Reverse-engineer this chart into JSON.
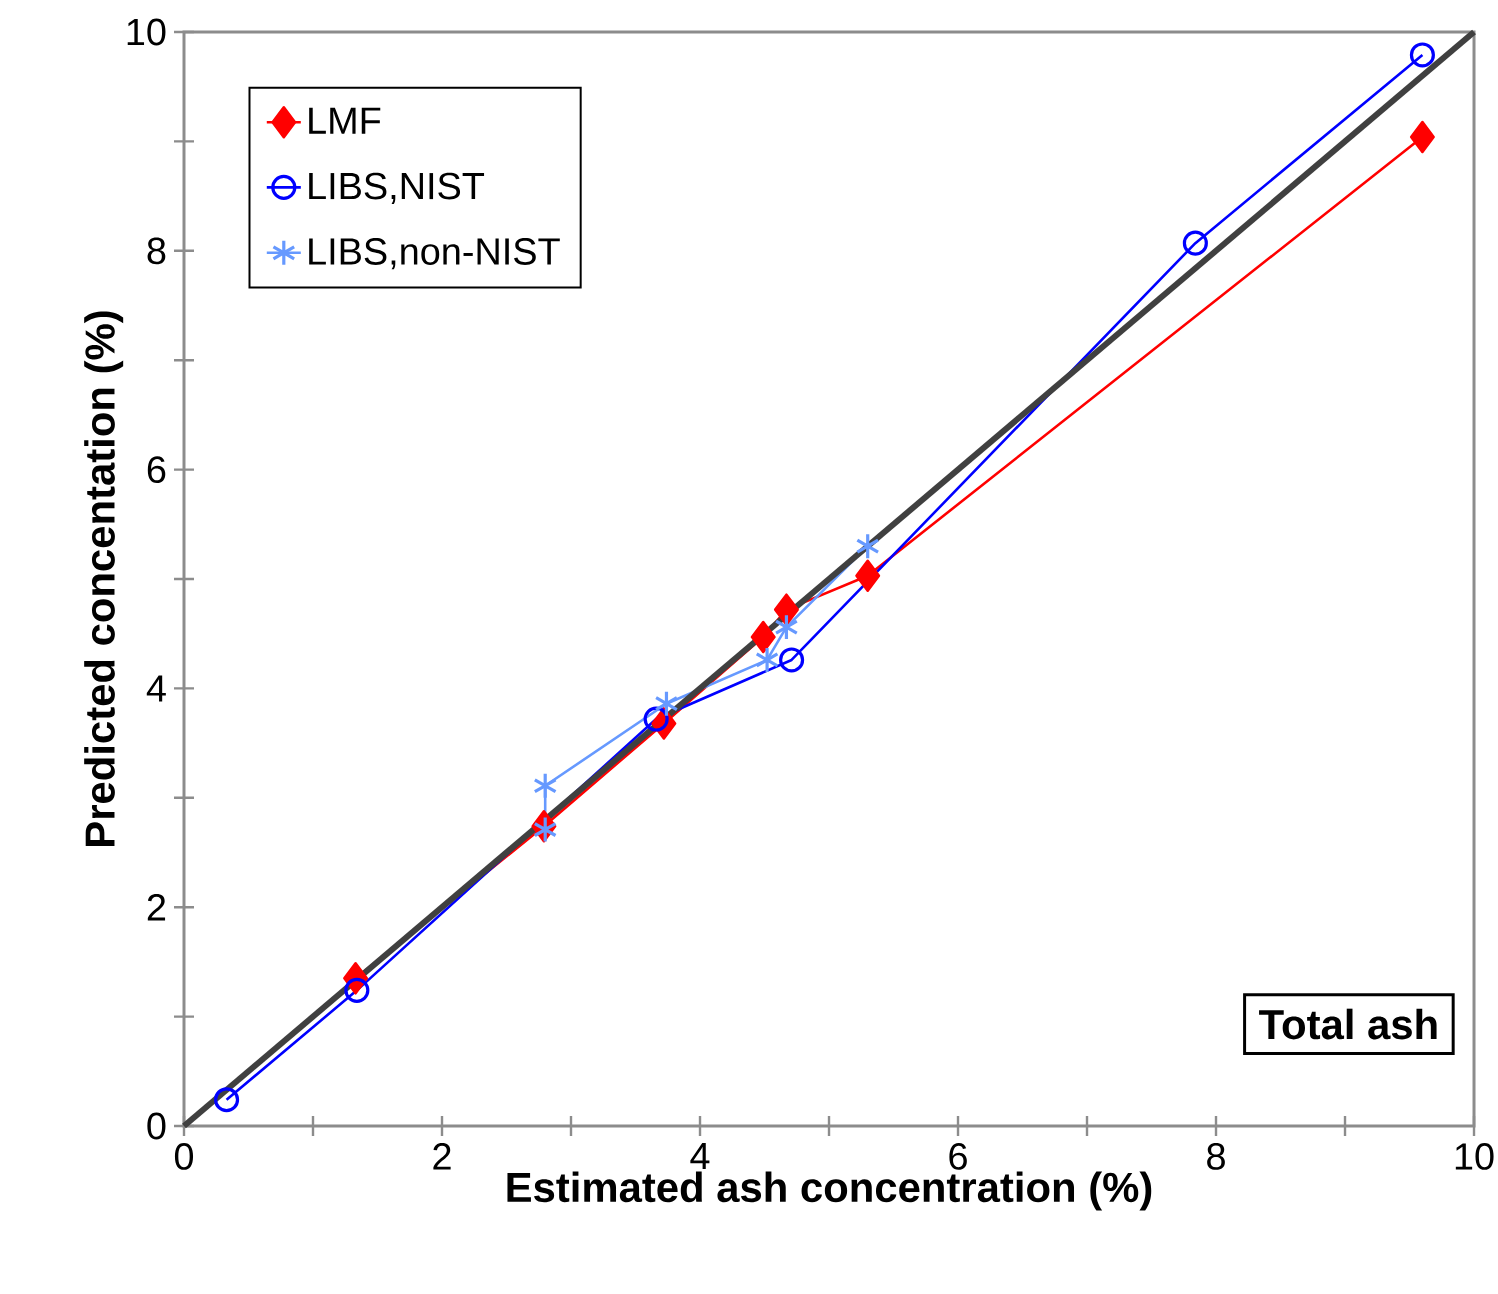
{
  "chart_data": {
    "type": "line",
    "xlabel": "Estimated ash concentration (%)",
    "ylabel": "Predicted concentation (%)",
    "xlim": [
      0,
      10
    ],
    "ylim": [
      0,
      10
    ],
    "xticks": [
      0,
      2,
      4,
      6,
      8,
      10
    ],
    "yticks": [
      0,
      2,
      4,
      6,
      8,
      10
    ],
    "grid": false,
    "legend": "top left",
    "annotations": [
      "Total ash"
    ],
    "series": [
      {
        "name": "LMF",
        "color": "#ff0000",
        "marker": "diamond",
        "x": [
          1.33,
          2.79,
          3.72,
          4.49,
          4.67,
          5.3,
          9.6
        ],
        "values": [
          1.35,
          2.74,
          3.68,
          4.47,
          4.72,
          5.03,
          9.04
        ]
      },
      {
        "name": "LIBS,NIST",
        "color": "#0000ff",
        "marker": "circle",
        "x": [
          0.33,
          1.34,
          3.66,
          4.71,
          7.84,
          9.6
        ],
        "values": [
          0.24,
          1.24,
          3.72,
          4.26,
          8.07,
          9.79
        ]
      },
      {
        "name": "LIBS,non-NIST",
        "color": "#6699ff",
        "marker": "cross",
        "x": [
          2.8,
          2.8,
          3.74,
          4.52,
          4.67,
          5.3
        ],
        "values": [
          2.71,
          3.11,
          3.86,
          4.26,
          4.56,
          5.3
        ]
      },
      {
        "color": "#404040",
        "x": [
          0,
          10
        ],
        "values": [
          0,
          10
        ]
      }
    ]
  }
}
